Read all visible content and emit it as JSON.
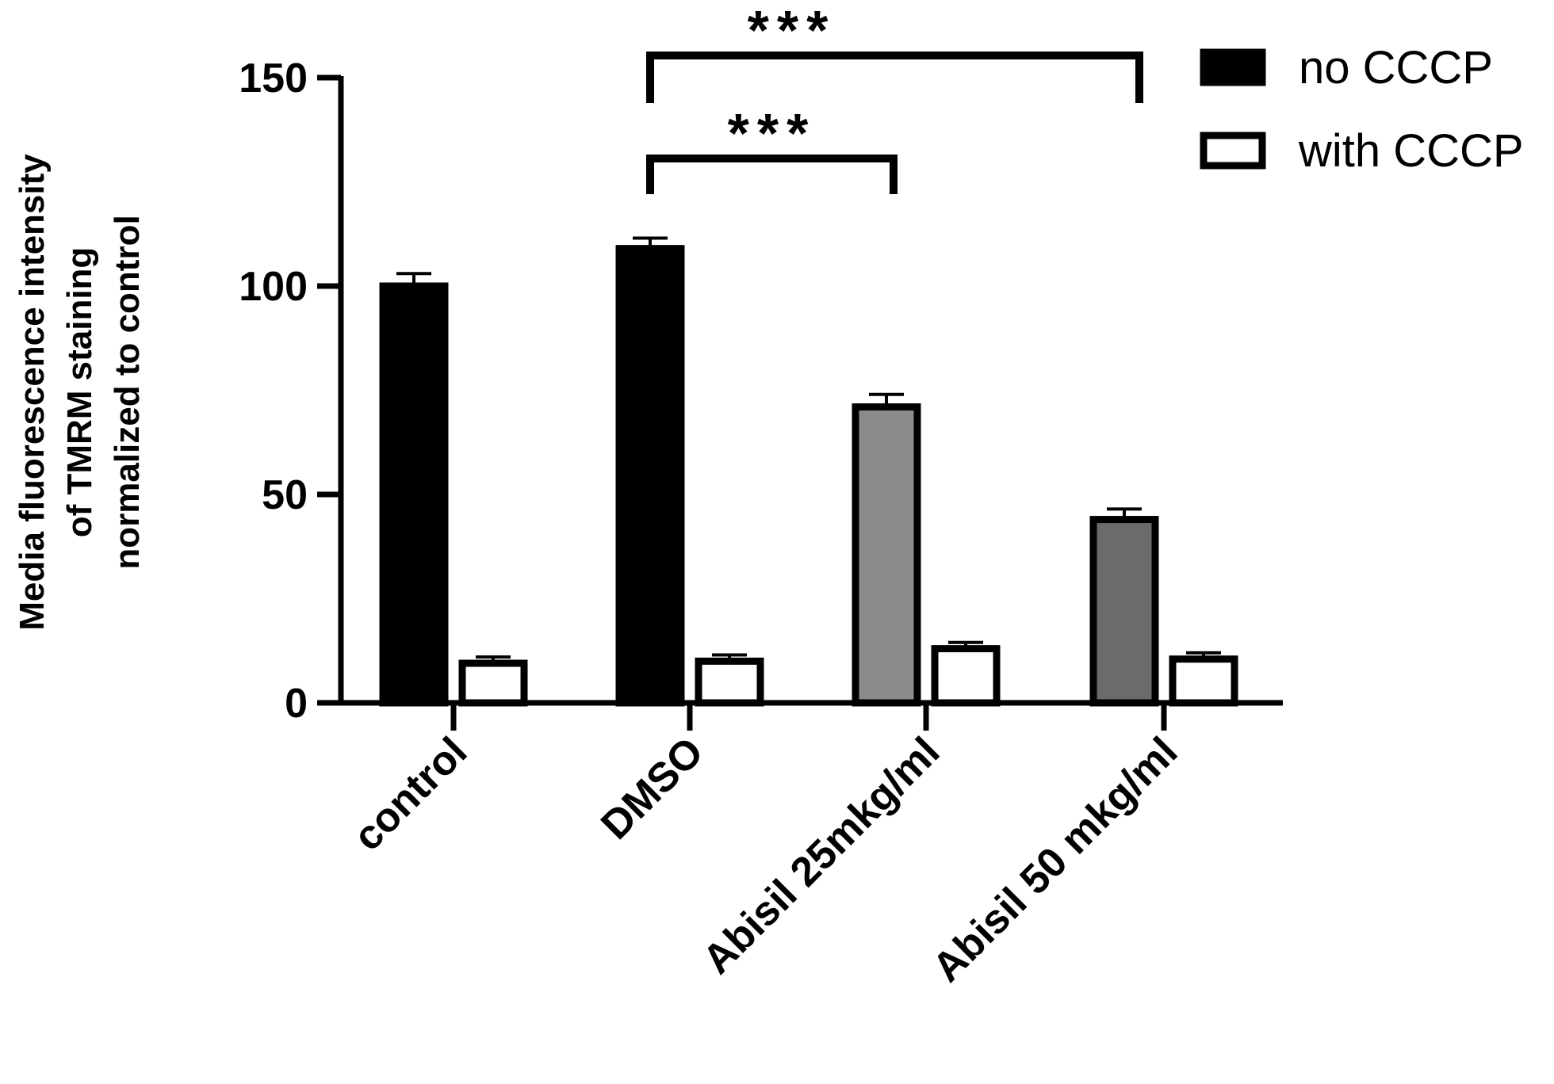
{
  "chart_data": {
    "type": "bar",
    "ylabel_lines": [
      "Media fluorescence intensity",
      "of TMRM staining",
      "normalized to control"
    ],
    "ylim": [
      0,
      150
    ],
    "yticks": [
      0,
      50,
      100,
      150
    ],
    "categories": [
      "control",
      "DMSO",
      "Abisil 25mkg/ml",
      "Abisil 50 mkg/ml"
    ],
    "series": [
      {
        "name": "no CCCP",
        "values": [
          100,
          109,
          71,
          44
        ],
        "errors": [
          3,
          2.5,
          3,
          2.5
        ],
        "colors": [
          "#000000",
          "#000000",
          "#8c8c8c",
          "#6b6b6b"
        ]
      },
      {
        "name": "with CCCP",
        "values": [
          9.5,
          10,
          13,
          10.5
        ],
        "errors": [
          1.5,
          1.5,
          1.5,
          1.5
        ],
        "colors": [
          "#ffffff",
          "#ffffff",
          "#ffffff",
          "#ffffff"
        ]
      }
    ],
    "legend_position": "top-right",
    "annotations": [
      {
        "from": "DMSO",
        "to": "Abisil 25mkg/ml",
        "label": "***"
      },
      {
        "from": "DMSO",
        "to": "Abisil 50 mkg/ml",
        "label": "***"
      }
    ]
  }
}
